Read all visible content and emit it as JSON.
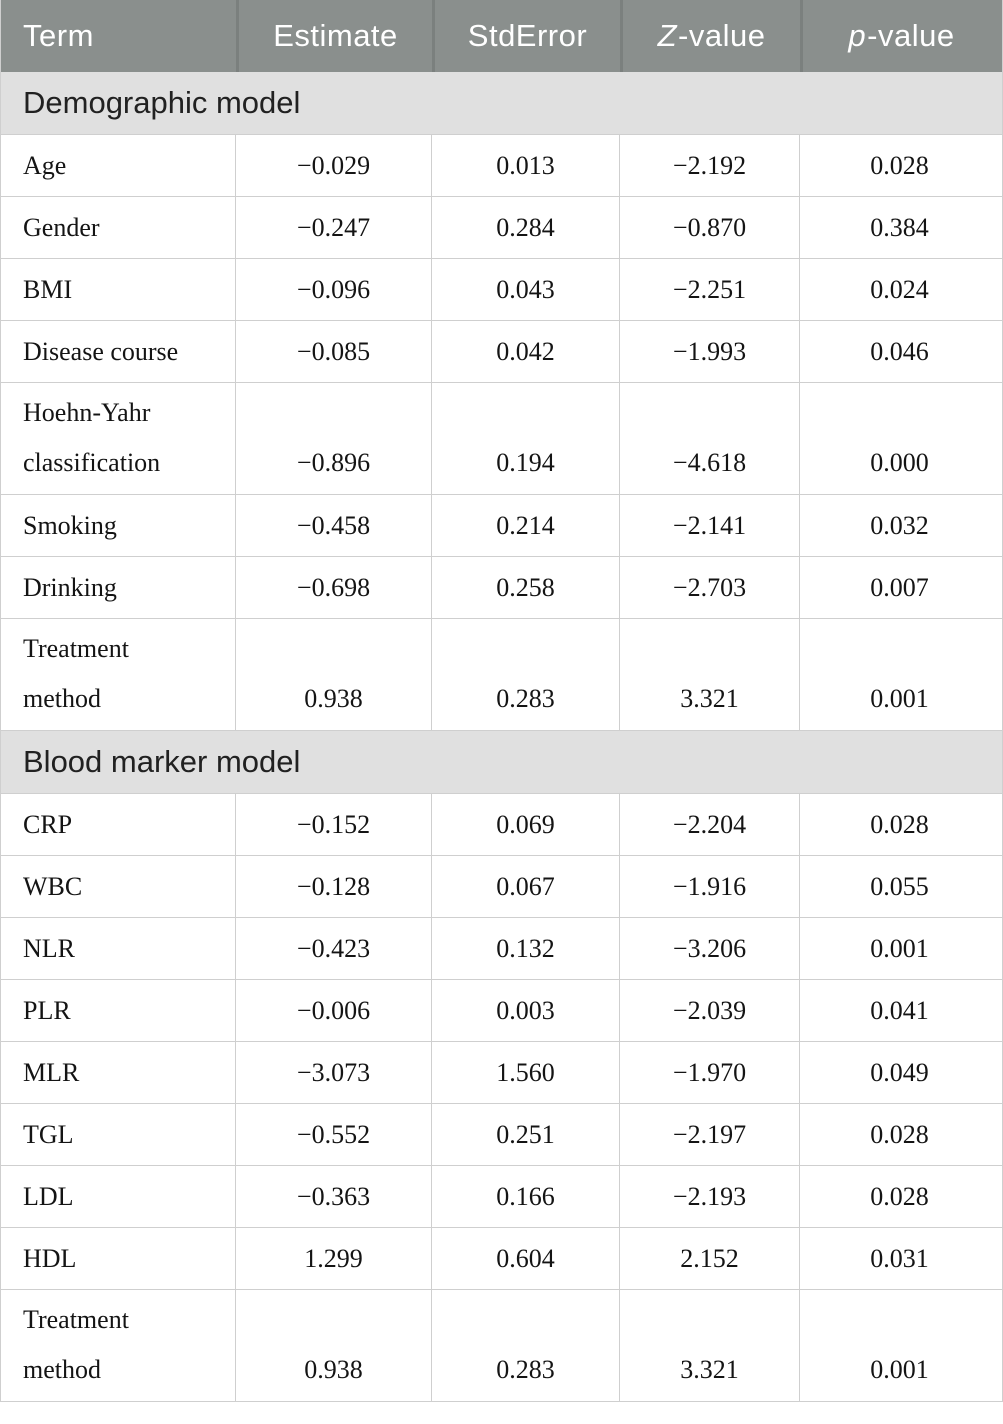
{
  "colors": {
    "header_bg": "#8A8F8D",
    "header_divider": "#7B807E",
    "header_text": "#FFFFFF",
    "section_bg": "#E0E0E0",
    "grid_line": "#CFCFCF",
    "body_text": "#141414"
  },
  "header": {
    "columns": [
      {
        "label": "Term",
        "align": "left",
        "italic_first": false
      },
      {
        "label": "Estimate",
        "align": "center",
        "italic_first": false
      },
      {
        "label": "StdError",
        "align": "center",
        "italic_first": false
      },
      {
        "label": "Z-value",
        "align": "center",
        "italic_first": true
      },
      {
        "label": "p-value",
        "align": "center",
        "italic_first": true
      }
    ]
  },
  "sections": [
    {
      "label": "Demographic model",
      "rows": [
        {
          "term_lines": [
            "Age"
          ],
          "tall": false,
          "values": [
            "−0.029",
            "0.013",
            "−2.192",
            "0.028"
          ]
        },
        {
          "term_lines": [
            "Gender"
          ],
          "tall": false,
          "values": [
            "−0.247",
            "0.284",
            "−0.870",
            "0.384"
          ]
        },
        {
          "term_lines": [
            "BMI"
          ],
          "tall": false,
          "values": [
            "−0.096",
            "0.043",
            "−2.251",
            "0.024"
          ]
        },
        {
          "term_lines": [
            "Disease course"
          ],
          "tall": false,
          "values": [
            "−0.085",
            "0.042",
            "−1.993",
            "0.046"
          ]
        },
        {
          "term_lines": [
            "Hoehn-Yahr",
            "classification"
          ],
          "tall": true,
          "values": [
            "−0.896",
            "0.194",
            "−4.618",
            "0.000"
          ]
        },
        {
          "term_lines": [
            "Smoking"
          ],
          "tall": false,
          "values": [
            "−0.458",
            "0.214",
            "−2.141",
            "0.032"
          ]
        },
        {
          "term_lines": [
            "Drinking"
          ],
          "tall": false,
          "values": [
            "−0.698",
            "0.258",
            "−2.703",
            "0.007"
          ]
        },
        {
          "term_lines": [
            "Treatment",
            "method"
          ],
          "tall": true,
          "values": [
            "0.938",
            "0.283",
            "3.321",
            "0.001"
          ]
        }
      ]
    },
    {
      "label": "Blood marker model",
      "rows": [
        {
          "term_lines": [
            "CRP"
          ],
          "tall": false,
          "values": [
            "−0.152",
            "0.069",
            "−2.204",
            "0.028"
          ]
        },
        {
          "term_lines": [
            "WBC"
          ],
          "tall": false,
          "values": [
            "−0.128",
            "0.067",
            "−1.916",
            "0.055"
          ]
        },
        {
          "term_lines": [
            "NLR"
          ],
          "tall": false,
          "values": [
            "−0.423",
            "0.132",
            "−3.206",
            "0.001"
          ]
        },
        {
          "term_lines": [
            "PLR"
          ],
          "tall": false,
          "values": [
            "−0.006",
            "0.003",
            "−2.039",
            "0.041"
          ]
        },
        {
          "term_lines": [
            "MLR"
          ],
          "tall": false,
          "values": [
            "−3.073",
            "1.560",
            "−1.970",
            "0.049"
          ]
        },
        {
          "term_lines": [
            "TGL"
          ],
          "tall": false,
          "values": [
            "−0.552",
            "0.251",
            "−2.197",
            "0.028"
          ]
        },
        {
          "term_lines": [
            "LDL"
          ],
          "tall": false,
          "values": [
            "−0.363",
            "0.166",
            "−2.193",
            "0.028"
          ]
        },
        {
          "term_lines": [
            "HDL"
          ],
          "tall": false,
          "values": [
            "1.299",
            "0.604",
            "2.152",
            "0.031"
          ]
        },
        {
          "term_lines": [
            "Treatment",
            "method"
          ],
          "tall": true,
          "values": [
            "0.938",
            "0.283",
            "3.321",
            "0.001"
          ]
        }
      ]
    }
  ]
}
